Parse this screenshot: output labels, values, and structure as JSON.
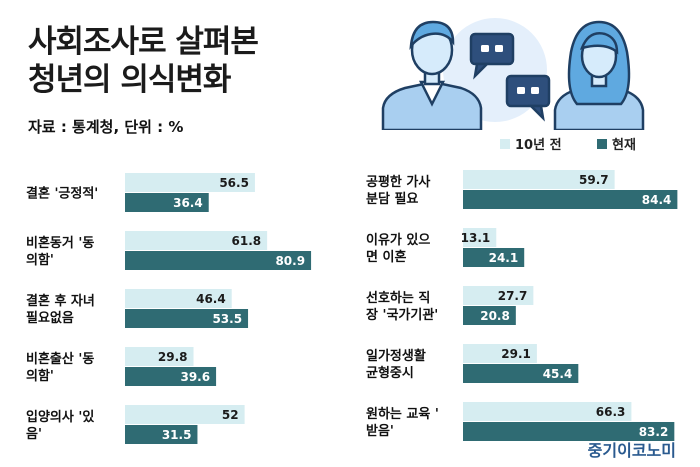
{
  "title_line1": "사회조사로 살펴본",
  "title_line2": "청년의 의식변화",
  "source": "자료 : 통계청, 단위 : %",
  "legend": {
    "past": "10년 전",
    "now": "현재"
  },
  "brand": "중기이코노미",
  "colors": {
    "past": "#d6edf1",
    "now": "#2f6b73",
    "text": "#111111"
  },
  "chart_data": [
    {
      "type": "bar",
      "orientation": "horizontal",
      "categories": [
        [
          "결혼 '긍정적'"
        ],
        [
          "비혼동거 '동",
          "의함'"
        ],
        [
          "결혼 후 자녀",
          "필요없음"
        ],
        [
          "비혼출산 '동",
          "의함'"
        ],
        [
          "입양의사 '있",
          "음'"
        ]
      ],
      "series": [
        {
          "name": "10년 전",
          "values": [
            56.5,
            61.8,
            46.4,
            29.8,
            52
          ]
        },
        {
          "name": "현재",
          "values": [
            36.4,
            80.9,
            53.5,
            39.6,
            31.5
          ]
        }
      ]
    },
    {
      "type": "bar",
      "orientation": "horizontal",
      "categories": [
        [
          "공평한 가사",
          "분담 필요"
        ],
        [
          "이유가 있으",
          "면 이혼"
        ],
        [
          "선호하는 직",
          "장 '국가기관'"
        ],
        [
          "일가정생활",
          "균형중시"
        ],
        [
          "원하는 교육 '",
          "받음'"
        ]
      ],
      "series": [
        {
          "name": "10년 전",
          "values": [
            59.7,
            13.1,
            27.7,
            29.1,
            66.3
          ]
        },
        {
          "name": "현재",
          "values": [
            84.4,
            24.1,
            20.8,
            45.4,
            83.2
          ]
        }
      ]
    }
  ]
}
